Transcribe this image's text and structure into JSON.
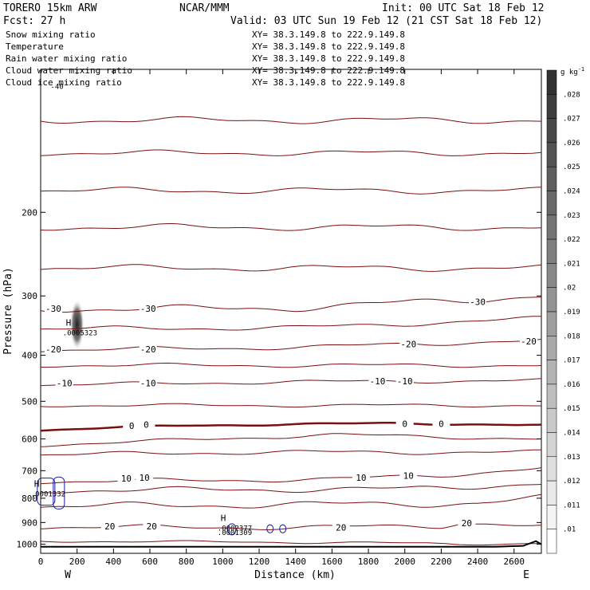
{
  "header": {
    "model": "TORERO  15km ARW",
    "org": "NCAR/MMM",
    "init": "Init: 00 UTC Sat 18 Feb 12",
    "fcst": "Fcst:    27 h",
    "valid": "Valid: 03 UTC Sun 19 Feb 12 (21 CST Sat 18 Feb 12)"
  },
  "legend": [
    {
      "label": "Snow mixing ratio",
      "color": "#000000",
      "xy": ""
    },
    {
      "label": "Temperature",
      "color": "#cc0000",
      "xy": "XY=  38.3.149.8 to 222.9.149.8"
    },
    {
      "label": "Rain water mixing ratio",
      "color": "#cc0000",
      "xy": "XY=  38.3.149.8 to 222.9.149.8"
    },
    {
      "label": "Cloud water mixing ratio",
      "color": "#1a1aa0",
      "xy": "XY=  38.3.149.8 to 222.9.149.8"
    },
    {
      "label": "Cloud ice mixing ratio",
      "color": "#000000",
      "xy": "XY=  38.3.149.8 to 222.9.149.8"
    }
  ],
  "top_xy": "XY=  38.3.149.8 to 222.9.149.8",
  "colorbar": {
    "unit": "g kg",
    "unit_exp": "-1",
    "labels": [
      ".028",
      ".027",
      ".026",
      ".025",
      ".024",
      ".023",
      ".022",
      ".021",
      ".02",
      ".019",
      ".018",
      ".017",
      ".016",
      ".015",
      ".014",
      ".013",
      ".012",
      ".011",
      ".01"
    ]
  },
  "chart_data": {
    "type": "contour",
    "xlabel": "Distance (km)",
    "ylabel": "Pressure (hPa)",
    "x_ticks": [
      "0",
      "200",
      "400",
      "600",
      "800",
      "1000",
      "1200",
      "1400",
      "1600",
      "1800",
      "2000",
      "2200",
      "2400",
      "2600"
    ],
    "y_ticks": [
      "200",
      "300",
      "400",
      "500",
      "600",
      "700",
      "800",
      "900",
      "1000"
    ],
    "xlim": [
      0,
      2750
    ],
    "ylim": [
      1045,
      100
    ],
    "y_scale": "log",
    "x_end_labels": {
      "left": "W",
      "right": "E"
    },
    "temperature_contours": [
      {
        "level": "-30",
        "labels": [
          {
            "x": 70,
            "p": 320
          },
          {
            "x": 590,
            "p": 320
          },
          {
            "x": 2400,
            "p": 310
          }
        ]
      },
      {
        "level": "-20",
        "labels": [
          {
            "x": 70,
            "p": 390
          },
          {
            "x": 590,
            "p": 390
          },
          {
            "x": 2020,
            "p": 380
          },
          {
            "x": 2680,
            "p": 375
          }
        ]
      },
      {
        "level": "-10",
        "labels": [
          {
            "x": 130,
            "p": 460
          },
          {
            "x": 590,
            "p": 460
          },
          {
            "x": 1850,
            "p": 455
          },
          {
            "x": 2000,
            "p": 455
          }
        ]
      },
      {
        "level": "0",
        "labels": [
          {
            "x": 500,
            "p": 565
          },
          {
            "x": 580,
            "p": 562
          },
          {
            "x": 2000,
            "p": 560
          },
          {
            "x": 2200,
            "p": 560
          }
        ]
      },
      {
        "level": "10",
        "labels": [
          {
            "x": 470,
            "p": 730
          },
          {
            "x": 570,
            "p": 727
          },
          {
            "x": 1760,
            "p": 727
          },
          {
            "x": 2020,
            "p": 720
          }
        ]
      },
      {
        "level": "20",
        "labels": [
          {
            "x": 380,
            "p": 920
          },
          {
            "x": 610,
            "p": 920
          },
          {
            "x": 1650,
            "p": 925
          },
          {
            "x": 2340,
            "p": 905
          }
        ]
      }
    ],
    "extrema": [
      {
        "kind": "H",
        "value": ".0005323",
        "x": 200,
        "p": 355,
        "color": "#000000",
        "field": "Cloud ice mixing ratio"
      },
      {
        "kind": "H",
        "value": ".0001332",
        "x": 25,
        "p": 775,
        "color": "#cc0000",
        "field": "Rain water mixing ratio"
      },
      {
        "kind": "H",
        "value": ".0002377",
        "x": 1050,
        "p": 915,
        "color": "#1a1aa0",
        "field": "Cloud water mixing ratio"
      },
      {
        "kind": "",
        "value": ".0001309",
        "x": 1050,
        "p": 935,
        "color": "#cc0000",
        "field": "Rain water mixing ratio"
      }
    ],
    "top_partial_label": "-40"
  }
}
